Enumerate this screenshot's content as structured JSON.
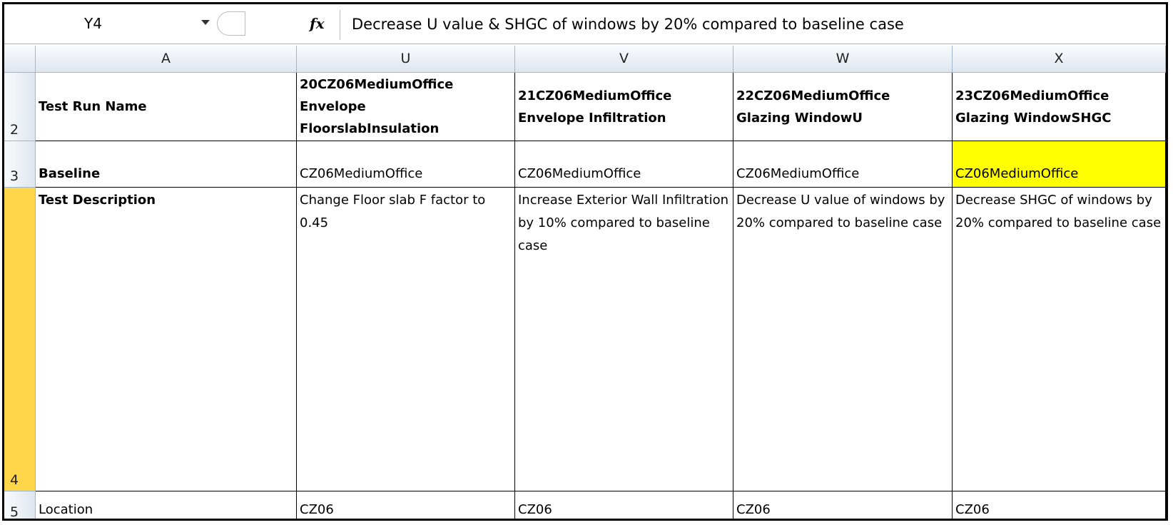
{
  "formula_bar": {
    "name_box": "Y4",
    "function_icon": "fx",
    "formula": "Decrease U value & SHGC of windows by 20% compared to baseline case"
  },
  "columns": [
    "A",
    "U",
    "V",
    "W",
    "X"
  ],
  "rows": [
    {
      "number": "2",
      "cells": [
        "Test Run Name",
        "20CZ06MediumOffice\nEnvelope\nFloorslabInsulation",
        "21CZ06MediumOffice\nEnvelope Infiltration",
        "22CZ06MediumOffice\nGlazing WindowU",
        "23CZ06MediumOffice\nGlazing WindowSHGC"
      ]
    },
    {
      "number": "3",
      "cells": [
        "Baseline",
        "CZ06MediumOffice",
        "CZ06MediumOffice",
        "CZ06MediumOffice",
        "CZ06MediumOffice"
      ]
    },
    {
      "number": "4",
      "cells": [
        "Test  Description",
        "Change Floor slab F factor to 0.45",
        "Increase Exterior Wall Infiltration by 10% compared to baseline case",
        "Decrease U value of windows by 20% compared to baseline case",
        "Decrease SHGC of windows by 20% compared to baseline case"
      ]
    },
    {
      "number": "5",
      "cells": [
        "Location",
        "CZ06",
        "CZ06",
        "CZ06",
        "CZ06"
      ]
    }
  ]
}
